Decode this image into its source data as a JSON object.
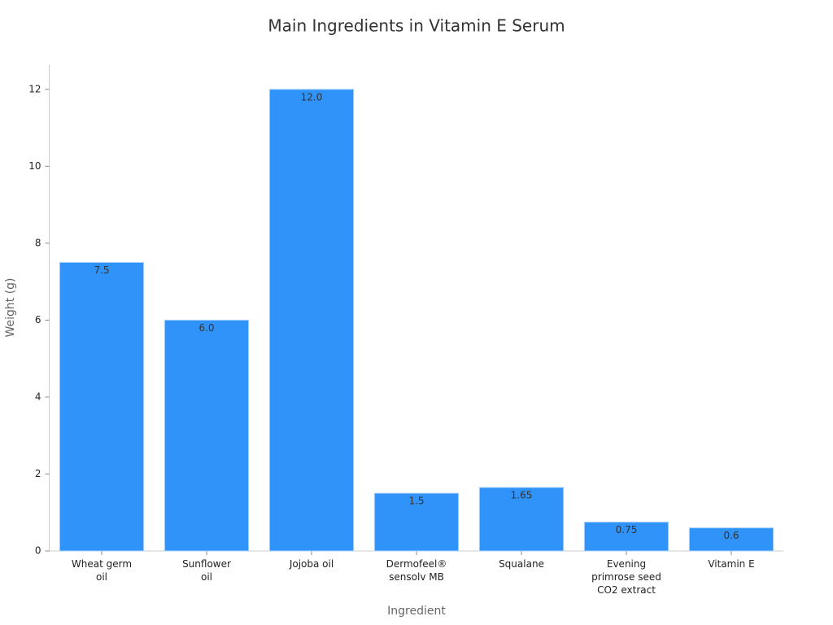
{
  "chart_data": {
    "type": "bar",
    "title": "Main Ingredients in Vitamin E Serum",
    "xlabel": "Ingredient",
    "ylabel": "Weight (g)",
    "categories": [
      "Wheat germ\noil",
      "Sunflower\noil",
      "Jojoba oil",
      "Dermofeel®\nsensolv MB",
      "Squalane",
      "Evening\nprimrose seed\nCO2 extract",
      "Vitamin E"
    ],
    "values": [
      7.5,
      6,
      12,
      1.5,
      1.65,
      0.75,
      0.6
    ],
    "value_labels": [
      "7.5",
      "6.0",
      "12.0",
      "1.5",
      "1.65",
      "0.75",
      "0.6"
    ],
    "color": "#2f93f9",
    "ylim": [
      0,
      12.63
    ],
    "yticks": [
      0,
      2,
      4,
      6,
      8,
      10,
      12
    ],
    "grid": false
  }
}
